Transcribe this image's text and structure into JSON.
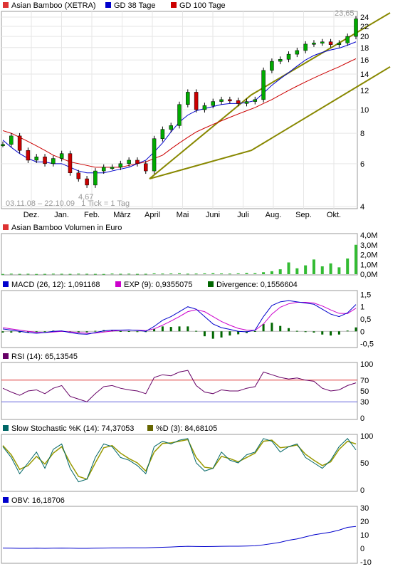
{
  "chart_data": [
    {
      "type": "candlestick",
      "panel": "price",
      "legend": [
        {
          "label": "Asian Bamboo (XETRA)",
          "color": "#dd3333"
        },
        {
          "label": "GD 38 Tage",
          "color": "#0000cc"
        },
        {
          "label": "GD 100 Tage",
          "color": "#cc0000"
        }
      ],
      "date_range_label": "03.11.08 – 22.10.09",
      "tick_label": "1 Tick = 1 Tag",
      "last_value_label": "23,65",
      "min_value_label": "4,67",
      "x_tick_labels": [
        "Dez.",
        "Jan.",
        "Feb.",
        "März",
        "April",
        "Mai",
        "Juni",
        "Juli",
        "Aug.",
        "Sep.",
        "Okt."
      ],
      "y_tick_labels": [
        "24",
        "22",
        "20",
        "18",
        "16",
        "14",
        "12",
        "10",
        "8",
        "6",
        "4"
      ],
      "y_scale": "log",
      "ylim": [
        4,
        25
      ],
      "series_colors": {
        "price_up": "#00aa00",
        "price_down": "#cc0000",
        "gd38": "#0000cc",
        "gd100": "#cc0000",
        "channel": "#888800"
      },
      "price_x": [
        0,
        6,
        12,
        18,
        24,
        30,
        36,
        42,
        48,
        54,
        60,
        66,
        72,
        78,
        84,
        90,
        96,
        102,
        108,
        114,
        120,
        126,
        132,
        138,
        144,
        150,
        156,
        162,
        168,
        174,
        180,
        186,
        192,
        198,
        204,
        210,
        216,
        222,
        228,
        234,
        240,
        246,
        252
      ],
      "price_y": [
        7.2,
        7.8,
        6.8,
        6.2,
        6.4,
        6.0,
        6.3,
        6.6,
        5.5,
        5.2,
        4.9,
        5.6,
        5.8,
        5.8,
        6.0,
        6.2,
        6.0,
        5.6,
        7.6,
        8.3,
        8.6,
        10.5,
        11.8,
        10.0,
        10.4,
        10.8,
        11.0,
        10.9,
        10.6,
        10.8,
        11.0,
        14.5,
        15.8,
        16.1,
        16.9,
        17.5,
        18.6,
        18.8,
        19.0,
        18.5,
        18.8,
        20.0,
        23.6
      ],
      "gd38_y": [
        7.5,
        7.0,
        6.6,
        6.3,
        6.1,
        6.1,
        6.0,
        6.0,
        5.8,
        5.6,
        5.5,
        5.5,
        5.5,
        5.6,
        5.7,
        5.8,
        6.0,
        6.2,
        6.7,
        7.3,
        8.1,
        8.9,
        9.5,
        9.9,
        10.1,
        10.3,
        10.5,
        10.6,
        10.6,
        10.7,
        10.9,
        11.7,
        12.6,
        13.4,
        14.2,
        15.1,
        16.0,
        16.7,
        17.2,
        17.6,
        17.9,
        18.4,
        19.0
      ],
      "gd100_y": [
        8.2,
        8.0,
        7.7,
        7.4,
        7.1,
        6.8,
        6.5,
        6.3,
        6.1,
        6.0,
        5.9,
        5.8,
        5.8,
        5.8,
        5.8,
        5.9,
        6.0,
        6.1,
        6.3,
        6.5,
        6.9,
        7.3,
        7.7,
        8.1,
        8.4,
        8.7,
        9.0,
        9.3,
        9.6,
        9.9,
        10.2,
        10.6,
        11.0,
        11.5,
        12.0,
        12.5,
        13.0,
        13.5,
        14.0,
        14.5,
        15.0,
        15.6,
        16.2
      ],
      "channel_lines": [
        {
          "x": [
            0,
            110,
            260
          ],
          "y": [
            5.2,
            11.5,
            25.0
          ]
        },
        {
          "x": [
            0,
            110,
            260
          ],
          "y": [
            5.2,
            6.8,
            15.0
          ]
        }
      ]
    },
    {
      "type": "bar",
      "panel": "volume",
      "title": "Asian Bamboo Volumen in Euro",
      "y_tick_labels": [
        "4,0M",
        "3,0M",
        "2,0M",
        "1,0M",
        "0,0M"
      ],
      "ylim": [
        0,
        4.0
      ],
      "bar_color": "#33bb33",
      "values": [
        0.02,
        0.05,
        0.03,
        0.04,
        0.02,
        0.03,
        0.05,
        0.04,
        0.03,
        0.05,
        0.04,
        0.03,
        0.02,
        0.06,
        0.04,
        0.05,
        0.03,
        0.04,
        0.08,
        0.06,
        0.07,
        0.09,
        0.05,
        0.06,
        0.08,
        0.1,
        0.07,
        0.06,
        0.08,
        0.12,
        0.1,
        0.2,
        0.3,
        0.5,
        1.2,
        0.6,
        0.9,
        1.5,
        0.8,
        1.1,
        0.7,
        1.6,
        3.0
      ]
    },
    {
      "type": "line",
      "panel": "macd",
      "legend": [
        {
          "label": "MACD (26, 12): 1,091168",
          "color": "#0000cc"
        },
        {
          "label": "EXP (9): 0,9355075",
          "color": "#cc00cc"
        },
        {
          "label": "Divergence: 0,1556604",
          "color": "#006600"
        }
      ],
      "y_tick_labels": [
        "1,5",
        "1",
        "0,5",
        "0",
        "-0,5"
      ],
      "ylim": [
        -0.6,
        1.6
      ],
      "macd": [
        0.1,
        0.05,
        0.0,
        -0.05,
        -0.08,
        -0.05,
        0.0,
        0.02,
        -0.05,
        -0.1,
        -0.12,
        -0.05,
        0.02,
        0.05,
        0.05,
        0.06,
        0.04,
        0.0,
        0.2,
        0.45,
        0.6,
        0.8,
        1.0,
        0.9,
        0.6,
        0.3,
        0.15,
        0.08,
        0.0,
        -0.02,
        0.05,
        0.6,
        1.05,
        1.2,
        1.25,
        1.2,
        1.15,
        1.1,
        0.9,
        0.7,
        0.6,
        0.75,
        1.09
      ],
      "signal": [
        0.15,
        0.1,
        0.05,
        0.0,
        -0.04,
        -0.05,
        -0.03,
        0.0,
        -0.02,
        -0.05,
        -0.08,
        -0.07,
        -0.03,
        0.01,
        0.04,
        0.05,
        0.05,
        0.03,
        0.1,
        0.25,
        0.42,
        0.6,
        0.8,
        0.88,
        0.8,
        0.6,
        0.4,
        0.25,
        0.12,
        0.05,
        0.04,
        0.3,
        0.7,
        0.98,
        1.12,
        1.18,
        1.18,
        1.15,
        1.03,
        0.87,
        0.73,
        0.72,
        0.94
      ],
      "divergence": [
        -0.05,
        -0.05,
        -0.05,
        -0.05,
        -0.04,
        0.0,
        0.03,
        0.02,
        -0.03,
        -0.05,
        -0.04,
        0.02,
        0.05,
        0.04,
        0.01,
        0.01,
        -0.01,
        -0.03,
        0.1,
        0.2,
        0.18,
        0.2,
        0.2,
        0.02,
        -0.2,
        -0.3,
        -0.25,
        -0.17,
        -0.12,
        -0.07,
        0.01,
        0.3,
        0.35,
        0.22,
        0.13,
        0.02,
        -0.03,
        -0.05,
        -0.13,
        -0.17,
        -0.13,
        0.03,
        0.16
      ]
    },
    {
      "type": "line",
      "panel": "rsi",
      "legend": [
        {
          "label": "RSI (14): 65,13545",
          "color": "#660066"
        }
      ],
      "y_tick_labels": [
        "100",
        "70",
        "50",
        "30",
        "0"
      ],
      "ylim": [
        0,
        100
      ],
      "levels": [
        70,
        30
      ],
      "values": [
        55,
        48,
        42,
        50,
        52,
        45,
        55,
        60,
        40,
        35,
        30,
        45,
        58,
        60,
        55,
        52,
        50,
        45,
        75,
        80,
        78,
        85,
        88,
        60,
        48,
        45,
        52,
        50,
        50,
        55,
        58,
        85,
        80,
        75,
        72,
        74,
        70,
        68,
        55,
        50,
        52,
        60,
        65
      ]
    },
    {
      "type": "line",
      "panel": "stochastic",
      "legend": [
        {
          "label": "Slow Stochastic %K (14): 74,37053",
          "color": "#006666"
        },
        {
          "label": "%D (3): 84,68105",
          "color": "#666600"
        }
      ],
      "y_tick_labels": [
        "100",
        "50",
        "0"
      ],
      "ylim": [
        0,
        100
      ],
      "k": [
        80,
        60,
        30,
        50,
        70,
        40,
        75,
        85,
        40,
        15,
        20,
        60,
        85,
        80,
        60,
        55,
        45,
        30,
        80,
        90,
        85,
        92,
        95,
        50,
        35,
        40,
        70,
        55,
        50,
        65,
        70,
        95,
        90,
        70,
        80,
        85,
        60,
        50,
        40,
        55,
        80,
        95,
        74
      ],
      "d": [
        82,
        65,
        38,
        45,
        62,
        48,
        68,
        80,
        50,
        25,
        20,
        50,
        78,
        82,
        68,
        58,
        50,
        35,
        70,
        86,
        87,
        90,
        93,
        60,
        42,
        40,
        62,
        58,
        52,
        60,
        68,
        90,
        92,
        78,
        80,
        83,
        66,
        55,
        45,
        52,
        75,
        90,
        85
      ]
    },
    {
      "type": "line",
      "panel": "obv",
      "legend": [
        {
          "label": "OBV: 16,18706",
          "color": "#0000cc"
        }
      ],
      "y_tick_labels": [
        "30",
        "20",
        "10",
        "0",
        "-10"
      ],
      "ylim": [
        -10,
        30
      ],
      "values": [
        0.2,
        0.1,
        0.0,
        0.0,
        0.1,
        0.0,
        0.1,
        0.2,
        0.1,
        0.0,
        0.0,
        0.1,
        0.2,
        0.3,
        0.3,
        0.4,
        0.4,
        0.4,
        0.6,
        0.8,
        1.0,
        1.3,
        1.5,
        1.4,
        1.3,
        1.4,
        1.5,
        1.6,
        1.6,
        1.7,
        1.9,
        2.6,
        3.5,
        4.5,
        6.0,
        7.0,
        8.5,
        10.0,
        11.0,
        12.0,
        13.5,
        15.5,
        16.2
      ]
    }
  ]
}
